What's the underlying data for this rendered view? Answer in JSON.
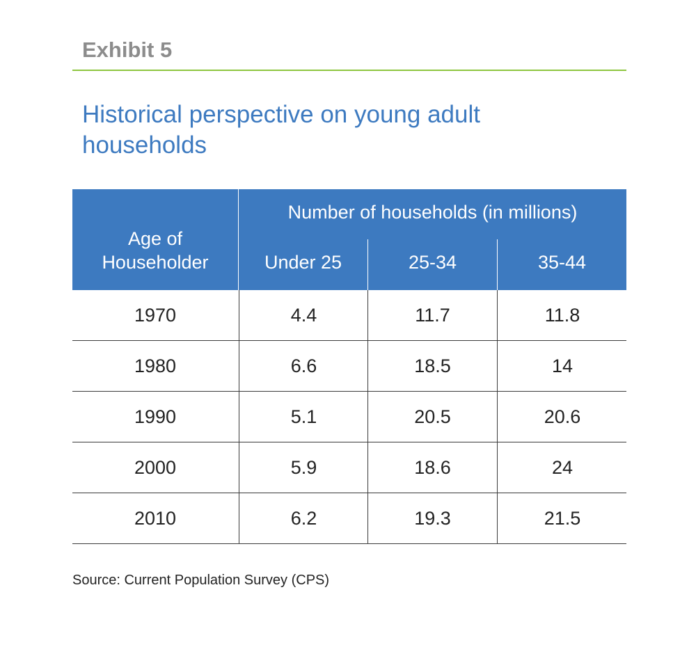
{
  "exhibit_label": "Exhibit 5",
  "title": "Historical perspective on young adult households",
  "table": {
    "row_header_lines": [
      "Age of",
      "Householder"
    ],
    "group_header": "Number of households (in millions)",
    "columns": [
      "Under 25",
      "25-34",
      "35-44"
    ],
    "rows": [
      {
        "year": "1970",
        "values": [
          "4.4",
          "11.7",
          "11.8"
        ]
      },
      {
        "year": "1980",
        "values": [
          "6.6",
          "18.5",
          "14"
        ]
      },
      {
        "year": "1990",
        "values": [
          "5.1",
          "20.5",
          "20.6"
        ]
      },
      {
        "year": "2000",
        "values": [
          "5.9",
          "18.6",
          "24"
        ]
      },
      {
        "year": "2010",
        "values": [
          "6.2",
          "19.3",
          "21.5"
        ]
      }
    ]
  },
  "source": "Source: Current Population Survey (CPS)",
  "colors": {
    "header_blue": "#3d7ac0",
    "rule_green": "#8dc63f",
    "label_gray": "#8c8c8c"
  }
}
